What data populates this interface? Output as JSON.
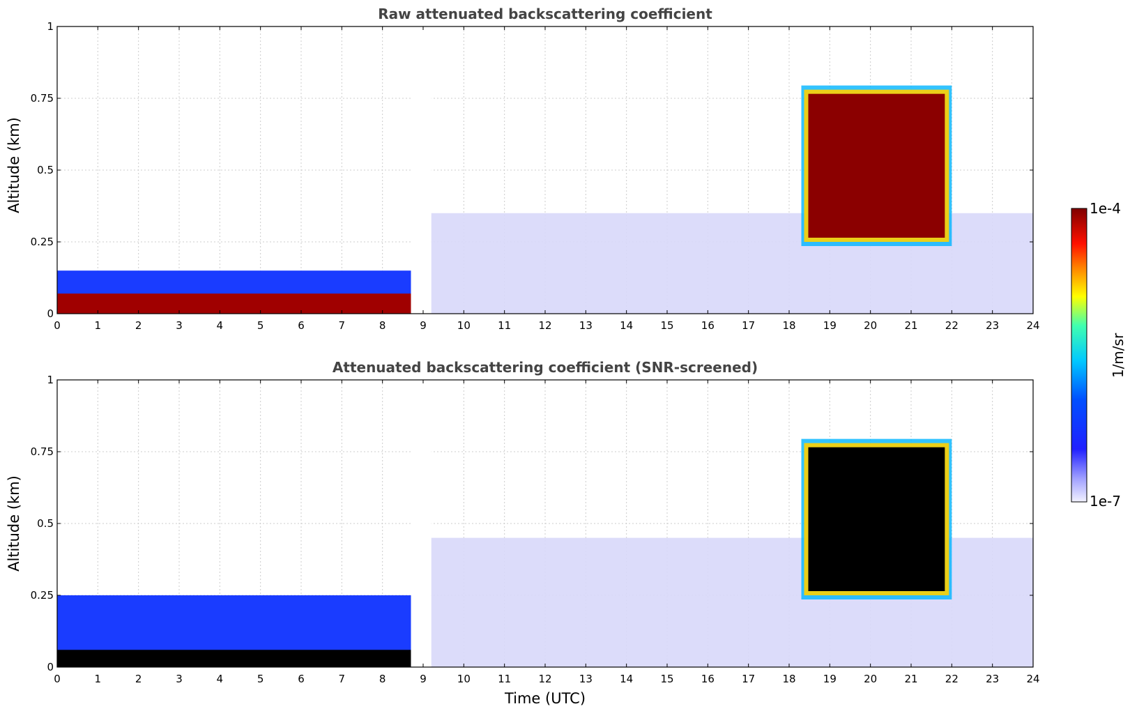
{
  "chart_data": [
    {
      "type": "heatmap",
      "title": "Raw attenuated backscattering coefficient",
      "xlabel": "",
      "ylabel": "Altitude (km)",
      "xlim": [
        0,
        24
      ],
      "ylim": [
        0,
        1
      ],
      "xticks": [
        "0",
        "1",
        "2",
        "3",
        "4",
        "5",
        "6",
        "7",
        "8",
        "9",
        "10",
        "11",
        "12",
        "13",
        "14",
        "15",
        "16",
        "17",
        "18",
        "19",
        "20",
        "21",
        "22",
        "23",
        "24"
      ],
      "yticks": [
        "0",
        "0.25",
        "0.5",
        "0.75",
        "1"
      ],
      "grid": true,
      "data_gap_utc": [
        8.7,
        9.2
      ],
      "features": [
        {
          "name": "surface aerosol layer",
          "start": 0,
          "end": 8.7,
          "top_km": 0.07,
          "level": "high"
        },
        {
          "name": "boundary layer",
          "start": 0,
          "end": 8.7,
          "top_km": 0.15,
          "level": "medium"
        },
        {
          "name": "boundary layer",
          "start": 9.2,
          "end": 24,
          "top_km": 0.35,
          "level": "low"
        },
        {
          "name": "cloud layer",
          "start": 18.3,
          "end": 22.0,
          "base_km": 0.25,
          "top_km": 0.78,
          "level": "very high"
        }
      ],
      "colorbar": {
        "min": "1e-7",
        "max": "1e-4",
        "label": "1/m/sr",
        "scale": "log"
      }
    },
    {
      "type": "heatmap",
      "title": "Attenuated backscattering coefficient (SNR-screened)",
      "xlabel": "Time (UTC)",
      "ylabel": "Altitude (km)",
      "xlim": [
        0,
        24
      ],
      "ylim": [
        0,
        1
      ],
      "xticks": [
        "0",
        "1",
        "2",
        "3",
        "4",
        "5",
        "6",
        "7",
        "8",
        "9",
        "10",
        "11",
        "12",
        "13",
        "14",
        "15",
        "16",
        "17",
        "18",
        "19",
        "20",
        "21",
        "22",
        "23",
        "24"
      ],
      "yticks": [
        "0",
        "0.25",
        "0.5",
        "0.75",
        "1"
      ],
      "grid": true,
      "data_gap_utc": [
        8.7,
        9.2
      ],
      "features": [
        {
          "name": "surface aerosol layer",
          "start": 0,
          "end": 8.7,
          "top_km": 0.06,
          "level": "saturated"
        },
        {
          "name": "boundary layer",
          "start": 0,
          "end": 8.7,
          "top_km": 0.25,
          "level": "medium"
        },
        {
          "name": "boundary layer",
          "start": 9.2,
          "end": 24,
          "top_km": 0.45,
          "level": "low"
        },
        {
          "name": "cloud layer",
          "start": 18.3,
          "end": 22.0,
          "base_km": 0.25,
          "top_km": 0.78,
          "level": "saturated"
        }
      ],
      "colorbar": {
        "min": "1e-7",
        "max": "1e-4",
        "label": "1/m/sr",
        "scale": "log"
      }
    }
  ],
  "colors": {
    "low": "#e6e6fa",
    "mid_low": "#0a1eff",
    "mid": "#00c8ff",
    "mid_high": "#ffff00",
    "high": "#ff3000",
    "very_high": "#8b0000",
    "saturated": "#000000"
  }
}
